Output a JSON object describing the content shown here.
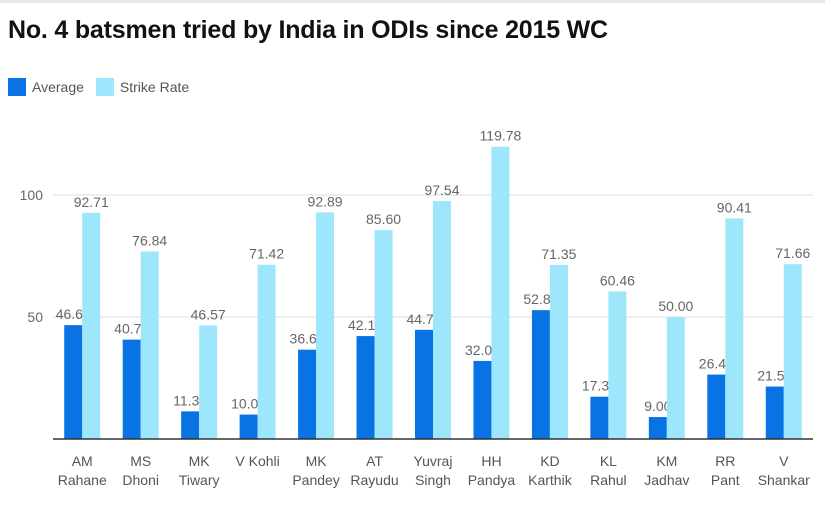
{
  "chart_data": {
    "type": "bar",
    "title": "No. 4 batsmen tried by India in ODIs since 2015 WC",
    "xlabel": "",
    "ylabel": "",
    "ylim": [
      0,
      125
    ],
    "yticks": [
      50,
      100
    ],
    "grid": true,
    "legend_position": "top-left",
    "categories": [
      [
        "AM",
        "Rahane"
      ],
      [
        "MS",
        "Dhoni"
      ],
      [
        "MK",
        "Tiwary"
      ],
      [
        "V Kohli"
      ],
      [
        "MK",
        "Pandey"
      ],
      [
        "AT",
        "Rayudu"
      ],
      [
        "Yuvraj",
        "Singh"
      ],
      [
        "HH",
        "Pandya"
      ],
      [
        "KD",
        "Karthik"
      ],
      [
        "KL",
        "Rahul"
      ],
      [
        "KM",
        "Jadhav"
      ],
      [
        "RR",
        "Pant"
      ],
      [
        "V",
        "Shankar"
      ]
    ],
    "series": [
      {
        "name": "Average",
        "color": "#0a73e3",
        "values": [
          46.66,
          40.72,
          11.33,
          10.0,
          36.6,
          42.18,
          44.75,
          32.0,
          52.8,
          17.33,
          9.0,
          26.4,
          21.5
        ],
        "labels": [
          "46.66",
          "40.72",
          "11.33",
          "10.00",
          "36.60",
          "42.18",
          "44.75",
          "32.00",
          "52.80",
          "17.33",
          "9.00",
          "26.40",
          "21.50"
        ]
      },
      {
        "name": "Strike Rate",
        "color": "#9ee6fb",
        "values": [
          92.71,
          76.84,
          46.57,
          71.42,
          92.89,
          85.6,
          97.54,
          119.78,
          71.35,
          60.46,
          50.0,
          90.41,
          71.66
        ],
        "labels": [
          "92.71",
          "76.84",
          "46.57",
          "71.42",
          "92.89",
          "85.60",
          "97.54",
          "119.78",
          "71.35",
          "60.46",
          "50.00",
          "90.41",
          "71.66"
        ]
      }
    ]
  }
}
